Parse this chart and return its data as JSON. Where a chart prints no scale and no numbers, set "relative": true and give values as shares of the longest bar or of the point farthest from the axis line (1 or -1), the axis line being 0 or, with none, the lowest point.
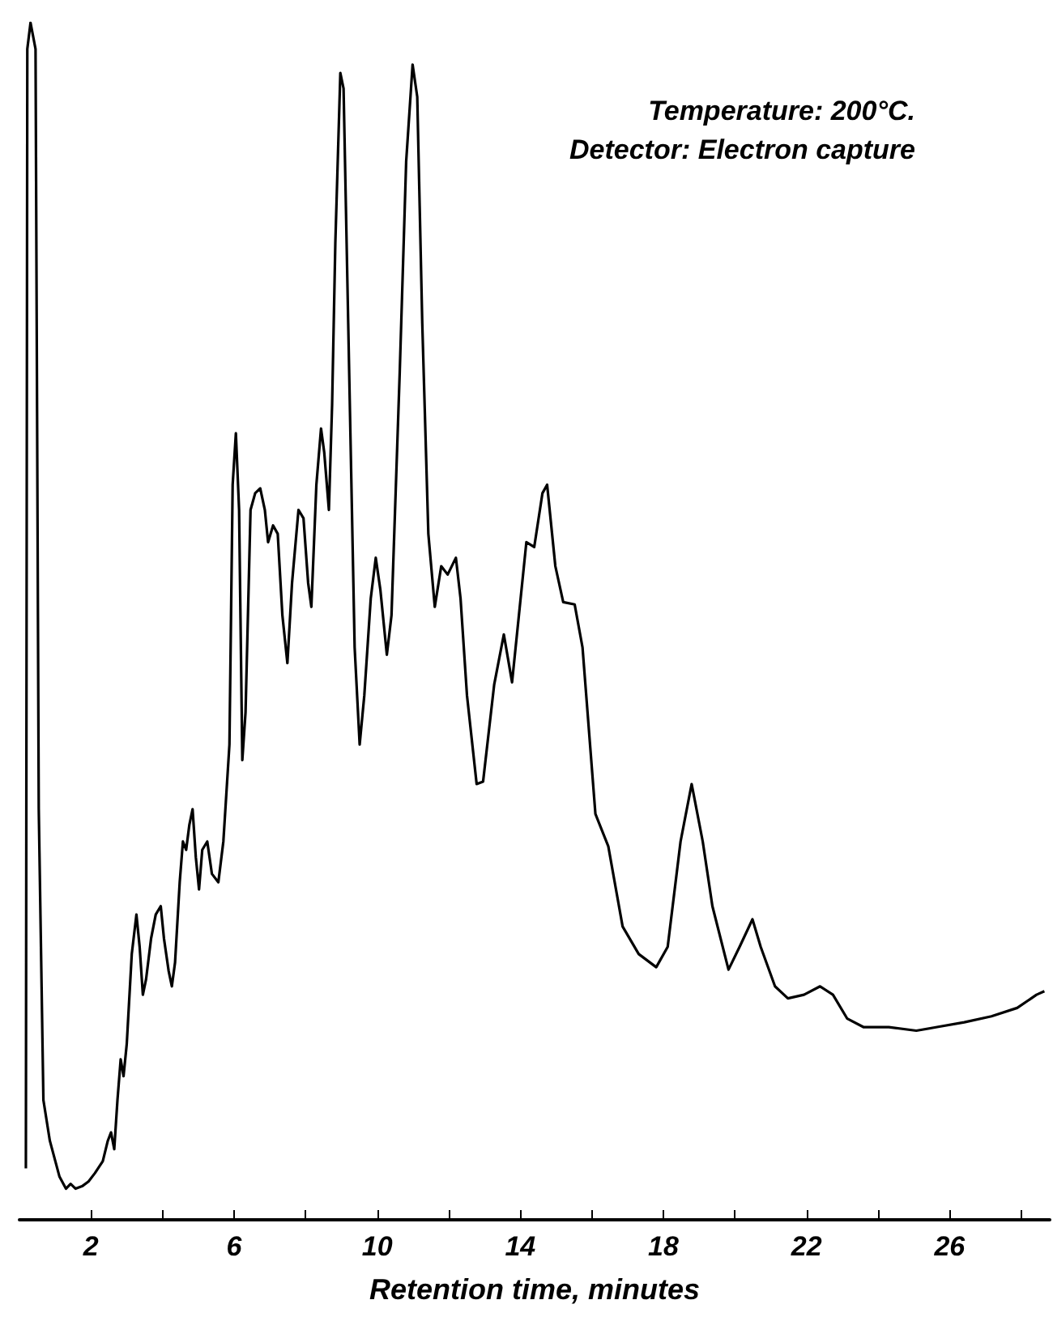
{
  "chart_data": {
    "type": "line",
    "xlabel": "Retention time, minutes",
    "relative": true,
    "grid": false,
    "marker": "none",
    "line_style": "solid",
    "annotations": [
      "Temperature: 200°C.",
      "Detector: Electron capture"
    ],
    "xlim": [
      0,
      28.8
    ],
    "xticks": [
      2,
      {
        "value": 4,
        "label": null
      },
      6,
      {
        "value": 8,
        "label": null
      },
      10,
      {
        "value": 12,
        "label": null
      },
      14,
      {
        "value": 16,
        "label": null
      },
      18,
      {
        "value": 20,
        "label": null
      },
      22,
      {
        "value": 24,
        "label": null
      },
      26,
      {
        "value": 28,
        "label": null
      }
    ],
    "series": [
      {
        "color": "#000000",
        "x": [
          0.18,
          0.22,
          0.31,
          0.45,
          0.54,
          0.67,
          0.85,
          1.12,
          1.3,
          1.43,
          1.57,
          1.75,
          1.93,
          2.11,
          2.33,
          2.47,
          2.56,
          2.65,
          2.74,
          2.83,
          2.91,
          3.0,
          3.14,
          3.27,
          3.36,
          3.45,
          3.54,
          3.68,
          3.81,
          3.95,
          4.04,
          4.17,
          4.26,
          4.35,
          4.48,
          4.57,
          4.66,
          4.75,
          4.84,
          4.93,
          5.02,
          5.11,
          5.25,
          5.38,
          5.56,
          5.7,
          5.87,
          5.96,
          6.05,
          6.14,
          6.23,
          6.32,
          6.46,
          6.59,
          6.73,
          6.86,
          6.95,
          7.09,
          7.22,
          7.35,
          7.49,
          7.62,
          7.8,
          7.94,
          8.07,
          8.16,
          8.3,
          8.43,
          8.52,
          8.65,
          8.74,
          8.83,
          8.97,
          9.06,
          9.19,
          9.37,
          9.51,
          9.64,
          9.82,
          9.96,
          10.09,
          10.27,
          10.4,
          10.63,
          10.81,
          10.99,
          11.12,
          11.26,
          11.43,
          11.61,
          11.79,
          11.97,
          12.2,
          12.33,
          12.51,
          12.78,
          12.96,
          13.27,
          13.54,
          13.77,
          14.17,
          14.39,
          14.62,
          14.75,
          14.98,
          15.2,
          15.52,
          15.74,
          16.1,
          16.46,
          16.86,
          17.31,
          17.8,
          18.12,
          18.48,
          18.79,
          19.1,
          19.37,
          19.82,
          20.13,
          20.49,
          20.72,
          21.12,
          21.48,
          21.93,
          22.38,
          22.74,
          23.14,
          23.59,
          24.3,
          25.07,
          25.65,
          26.41,
          27.17,
          27.89,
          28.43,
          28.65
        ],
        "values": [
          0.043,
          0.978,
          1,
          0.978,
          0.343,
          0.1,
          0.066,
          0.036,
          0.026,
          0.03,
          0.026,
          0.028,
          0.032,
          0.039,
          0.049,
          0.066,
          0.073,
          0.059,
          0.1,
          0.134,
          0.12,
          0.147,
          0.222,
          0.255,
          0.228,
          0.188,
          0.201,
          0.235,
          0.255,
          0.262,
          0.235,
          0.208,
          0.195,
          0.215,
          0.282,
          0.316,
          0.309,
          0.33,
          0.343,
          0.303,
          0.276,
          0.309,
          0.316,
          0.289,
          0.282,
          0.316,
          0.397,
          0.614,
          0.657,
          0.593,
          0.384,
          0.424,
          0.593,
          0.607,
          0.611,
          0.593,
          0.566,
          0.58,
          0.573,
          0.505,
          0.465,
          0.532,
          0.593,
          0.586,
          0.532,
          0.512,
          0.614,
          0.661,
          0.641,
          0.593,
          0.681,
          0.816,
          0.958,
          0.945,
          0.749,
          0.478,
          0.397,
          0.438,
          0.519,
          0.553,
          0.526,
          0.472,
          0.505,
          0.708,
          0.884,
          0.965,
          0.938,
          0.749,
          0.573,
          0.512,
          0.546,
          0.539,
          0.553,
          0.519,
          0.438,
          0.364,
          0.366,
          0.447,
          0.489,
          0.449,
          0.566,
          0.562,
          0.607,
          0.614,
          0.546,
          0.516,
          0.514,
          0.478,
          0.339,
          0.312,
          0.245,
          0.222,
          0.211,
          0.228,
          0.316,
          0.364,
          0.316,
          0.262,
          0.209,
          0.228,
          0.251,
          0.228,
          0.195,
          0.185,
          0.188,
          0.195,
          0.188,
          0.168,
          0.161,
          0.161,
          0.158,
          0.161,
          0.165,
          0.17,
          0.177,
          0.188,
          0.191
        ]
      }
    ]
  }
}
